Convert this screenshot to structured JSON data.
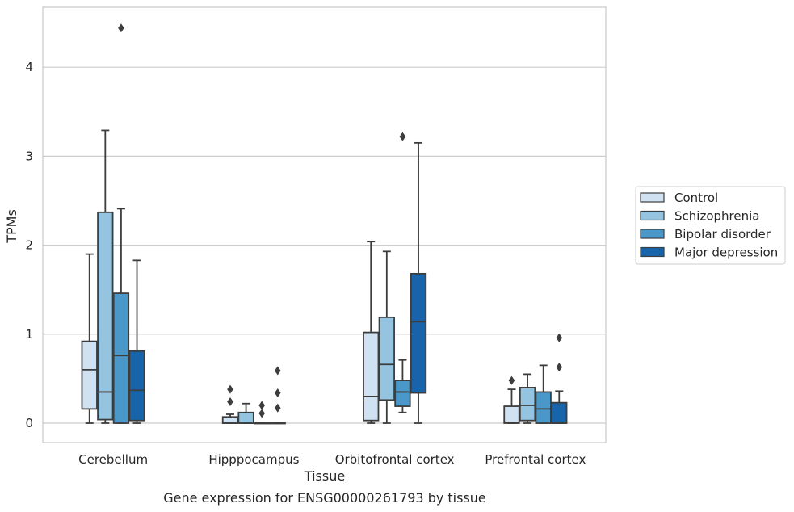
{
  "chart_data": {
    "type": "boxplot",
    "title": "Gene expression for ENSG00000261793 by tissue",
    "xlabel": "Tissue",
    "ylabel": "TPMs",
    "ylim": [
      -0.22,
      4.67
    ],
    "yticks": [
      0,
      1,
      2,
      3,
      4
    ],
    "categories": [
      "Cerebellum",
      "Hipppocampus",
      "Orbitofrontal cortex",
      "Prefrontal cortex"
    ],
    "grid": "horizontal",
    "legend_position": "right",
    "series": [
      {
        "name": "Control",
        "color": "#d0e1f2",
        "boxes": [
          {
            "whislo": 0.0,
            "q1": 0.16,
            "med": 0.6,
            "q3": 0.92,
            "whishi": 1.9,
            "fliers": []
          },
          {
            "whislo": 0.0,
            "q1": 0.0,
            "med": 0.0,
            "q3": 0.07,
            "whishi": 0.1,
            "fliers": [
              0.24,
              0.38
            ]
          },
          {
            "whislo": 0.0,
            "q1": 0.03,
            "med": 0.3,
            "q3": 1.02,
            "whishi": 2.04,
            "fliers": []
          },
          {
            "whislo": 0.0,
            "q1": 0.0,
            "med": 0.01,
            "q3": 0.19,
            "whishi": 0.38,
            "fliers": [
              0.48
            ]
          }
        ]
      },
      {
        "name": "Schizophrenia",
        "color": "#94c4df",
        "boxes": [
          {
            "whislo": 0.0,
            "q1": 0.04,
            "med": 0.35,
            "q3": 2.37,
            "whishi": 3.29,
            "fliers": []
          },
          {
            "whislo": 0.0,
            "q1": 0.0,
            "med": 0.0,
            "q3": 0.12,
            "whishi": 0.22,
            "fliers": []
          },
          {
            "whislo": 0.0,
            "q1": 0.26,
            "med": 0.66,
            "q3": 1.19,
            "whishi": 1.93,
            "fliers": []
          },
          {
            "whislo": 0.0,
            "q1": 0.03,
            "med": 0.2,
            "q3": 0.4,
            "whishi": 0.55,
            "fliers": []
          }
        ]
      },
      {
        "name": "Bipolar disorder",
        "color": "#4a98c9",
        "boxes": [
          {
            "whislo": 0.0,
            "q1": 0.0,
            "med": 0.76,
            "q3": 1.46,
            "whishi": 2.41,
            "fliers": [
              4.44
            ]
          },
          {
            "whislo": 0.0,
            "q1": 0.0,
            "med": 0.0,
            "q3": 0.0,
            "whishi": 0.0,
            "fliers": [
              0.11,
              0.2
            ]
          },
          {
            "whislo": 0.12,
            "q1": 0.19,
            "med": 0.35,
            "q3": 0.48,
            "whishi": 0.71,
            "fliers": [
              3.22
            ]
          },
          {
            "whislo": 0.0,
            "q1": 0.0,
            "med": 0.16,
            "q3": 0.35,
            "whishi": 0.65,
            "fliers": []
          }
        ]
      },
      {
        "name": "Major depression",
        "color": "#1764ab",
        "boxes": [
          {
            "whislo": 0.0,
            "q1": 0.03,
            "med": 0.37,
            "q3": 0.81,
            "whishi": 1.83,
            "fliers": []
          },
          {
            "whislo": 0.0,
            "q1": 0.0,
            "med": 0.0,
            "q3": 0.0,
            "whishi": 0.0,
            "fliers": [
              0.17,
              0.34,
              0.59
            ]
          },
          {
            "whislo": 0.0,
            "q1": 0.34,
            "med": 1.14,
            "q3": 1.68,
            "whishi": 3.15,
            "fliers": []
          },
          {
            "whislo": 0.0,
            "q1": 0.0,
            "med": 0.0,
            "q3": 0.23,
            "whishi": 0.36,
            "fliers": [
              0.63,
              0.96
            ]
          }
        ]
      }
    ]
  }
}
